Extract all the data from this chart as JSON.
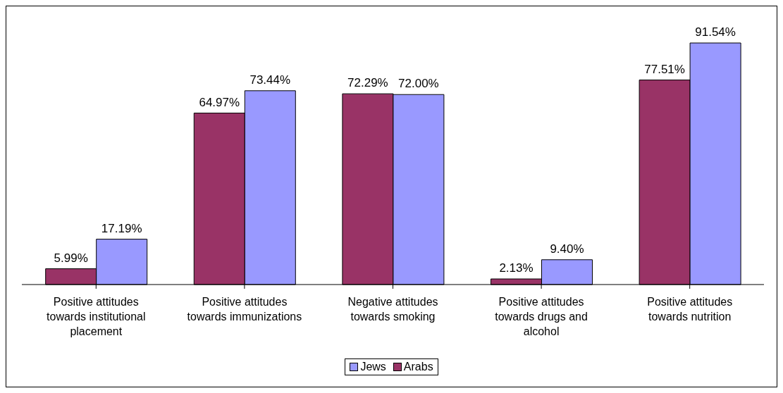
{
  "chart_data": {
    "type": "bar",
    "categories": [
      "Positive attitudes towards institutional placement",
      "Positive attitudes towards immunizations",
      "Negative attitudes towards smoking",
      "Positive attitudes towards drugs and alcohol",
      "Positive attitudes towards nutrition"
    ],
    "series": [
      {
        "name": "Arabs",
        "color": "#993366",
        "values": [
          5.99,
          64.97,
          72.29,
          2.13,
          77.51
        ],
        "value_labels": [
          "5.99%",
          "64.97%",
          "72.29%",
          "2.13%",
          "77.51%"
        ]
      },
      {
        "name": "Jews",
        "color": "#9999ff",
        "values": [
          17.19,
          73.44,
          72.0,
          9.4,
          91.54
        ],
        "value_labels": [
          "17.19%",
          "73.44%",
          "72.00%",
          "9.40%",
          "91.54%"
        ]
      }
    ],
    "legend": "bottom",
    "grid": false
  }
}
